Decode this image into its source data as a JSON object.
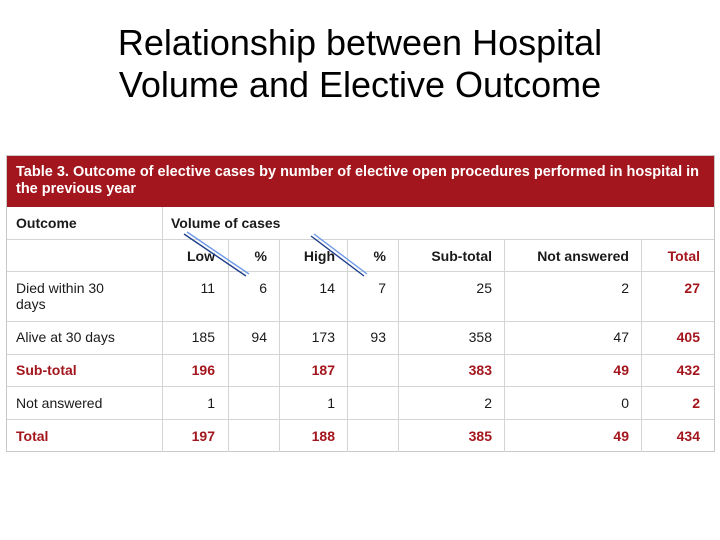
{
  "slide": {
    "title_line1": "Relationship between Hospital",
    "title_line2": "Volume and Elective Outcome"
  },
  "table": {
    "caption": "Table 3. Outcome of elective cases by number of elective open procedures performed in hospital in the previous year",
    "header_outcome": "Outcome",
    "header_volume": "Volume of cases",
    "columns": [
      "Low",
      "%",
      "High",
      "%",
      "Sub-total",
      "Not answered",
      "Total"
    ],
    "rows": [
      {
        "label": "Died within 30 days",
        "values": [
          "11",
          "6",
          "14",
          "7",
          "25",
          "2",
          "27"
        ]
      },
      {
        "label": "Alive at 30 days",
        "values": [
          "185",
          "94",
          "173",
          "93",
          "358",
          "47",
          "405"
        ]
      },
      {
        "label": "Sub-total",
        "values": [
          "196",
          "",
          "187",
          "",
          "383",
          "49",
          "432"
        ]
      },
      {
        "label": "Not answered",
        "values": [
          "1",
          "",
          "1",
          "",
          "2",
          "0",
          "2"
        ]
      },
      {
        "label": "Total",
        "values": [
          "197",
          "",
          "188",
          "",
          "385",
          "49",
          "434"
        ]
      }
    ]
  },
  "colors": {
    "accent": "#a4161d",
    "caption_text": "#ffffff",
    "annotation": "#3b6fd9"
  }
}
